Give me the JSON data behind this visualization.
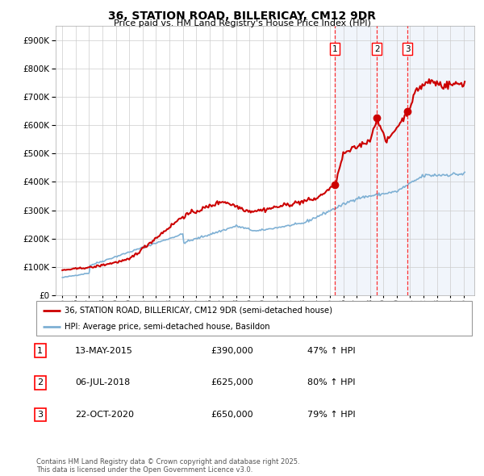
{
  "title": "36, STATION ROAD, BILLERICAY, CM12 9DR",
  "subtitle": "Price paid vs. HM Land Registry's House Price Index (HPI)",
  "red_label": "36, STATION ROAD, BILLERICAY, CM12 9DR (semi-detached house)",
  "blue_label": "HPI: Average price, semi-detached house, Basildon",
  "footer": "Contains HM Land Registry data © Crown copyright and database right 2025.\nThis data is licensed under the Open Government Licence v3.0.",
  "transactions": [
    {
      "num": 1,
      "date": "13-MAY-2015",
      "price": "£390,000",
      "pct": "47% ↑ HPI",
      "year": 2015.37
    },
    {
      "num": 2,
      "date": "06-JUL-2018",
      "price": "£625,000",
      "pct": "80% ↑ HPI",
      "year": 2018.51
    },
    {
      "num": 3,
      "date": "22-OCT-2020",
      "price": "£650,000",
      "pct": "79% ↑ HPI",
      "year": 2020.81
    }
  ],
  "sale_prices": [
    390000,
    625000,
    650000
  ],
  "sale_years": [
    2015.37,
    2018.51,
    2020.81
  ],
  "ylim": [
    0,
    950000
  ],
  "xlim_start": 1994.5,
  "xlim_end": 2025.8,
  "plot_bg": "#ffffff",
  "red_color": "#cc0000",
  "blue_color": "#7eb0d4",
  "shade_color": "#c8d8f0",
  "shade_start": 2015.37,
  "grid_color": "#cccccc"
}
